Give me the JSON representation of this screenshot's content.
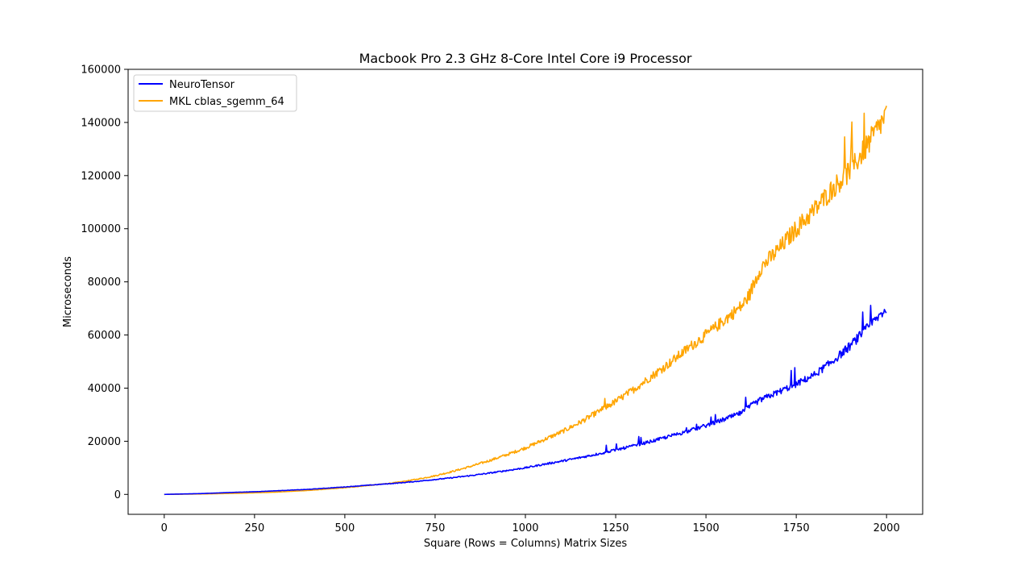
{
  "chart_data": {
    "type": "line",
    "title": "Macbook Pro 2.3 GHz 8-Core Intel Core i9 Processor",
    "xlabel": "Square (Rows = Columns) Matrix Sizes",
    "ylabel": "Microseconds",
    "xlim": [
      -100,
      2100
    ],
    "ylim": [
      -7500,
      160000
    ],
    "xticks": [
      0,
      250,
      500,
      750,
      1000,
      1250,
      1500,
      1750,
      2000
    ],
    "yticks": [
      0,
      20000,
      40000,
      60000,
      80000,
      100000,
      120000,
      140000,
      160000
    ],
    "grid": false,
    "legend_position": "top-left",
    "series": [
      {
        "name": "NeuroTensor",
        "color": "#0000ff",
        "x": [
          0,
          100,
          200,
          250,
          300,
          400,
          500,
          600,
          650,
          700,
          750,
          800,
          850,
          900,
          950,
          1000,
          1050,
          1100,
          1150,
          1200,
          1250,
          1300,
          1350,
          1400,
          1450,
          1500,
          1550,
          1600,
          1620,
          1650,
          1700,
          1750,
          1800,
          1850,
          1900,
          1950,
          2000
        ],
        "values": [
          0,
          300,
          800,
          1000,
          1300,
          1900,
          2800,
          3800,
          4300,
          4900,
          5600,
          6300,
          7100,
          8000,
          9000,
          10000,
          11300,
          12500,
          13800,
          15200,
          16700,
          18300,
          20000,
          21900,
          23800,
          25900,
          28200,
          30800,
          33000,
          35500,
          38500,
          41500,
          45000,
          50000,
          56000,
          63000,
          70000
        ]
      },
      {
        "name": "MKL cblas_sgemm_64",
        "color": "#ffa500",
        "x": [
          0,
          100,
          200,
          300,
          400,
          500,
          600,
          650,
          700,
          750,
          800,
          850,
          900,
          950,
          1000,
          1050,
          1100,
          1150,
          1200,
          1250,
          1300,
          1350,
          1400,
          1450,
          1500,
          1550,
          1600,
          1620,
          1650,
          1700,
          1750,
          1800,
          1850,
          1900,
          1950,
          2000
        ],
        "values": [
          0,
          150,
          400,
          800,
          1500,
          2500,
          3800,
          4600,
          5700,
          7000,
          8700,
          10600,
          12700,
          15000,
          17500,
          20500,
          23500,
          27000,
          31000,
          35000,
          39500,
          44500,
          49500,
          55000,
          60000,
          65500,
          71000,
          75000,
          85000,
          92000,
          100000,
          107000,
          115000,
          122000,
          132000,
          143000
        ]
      }
    ]
  }
}
